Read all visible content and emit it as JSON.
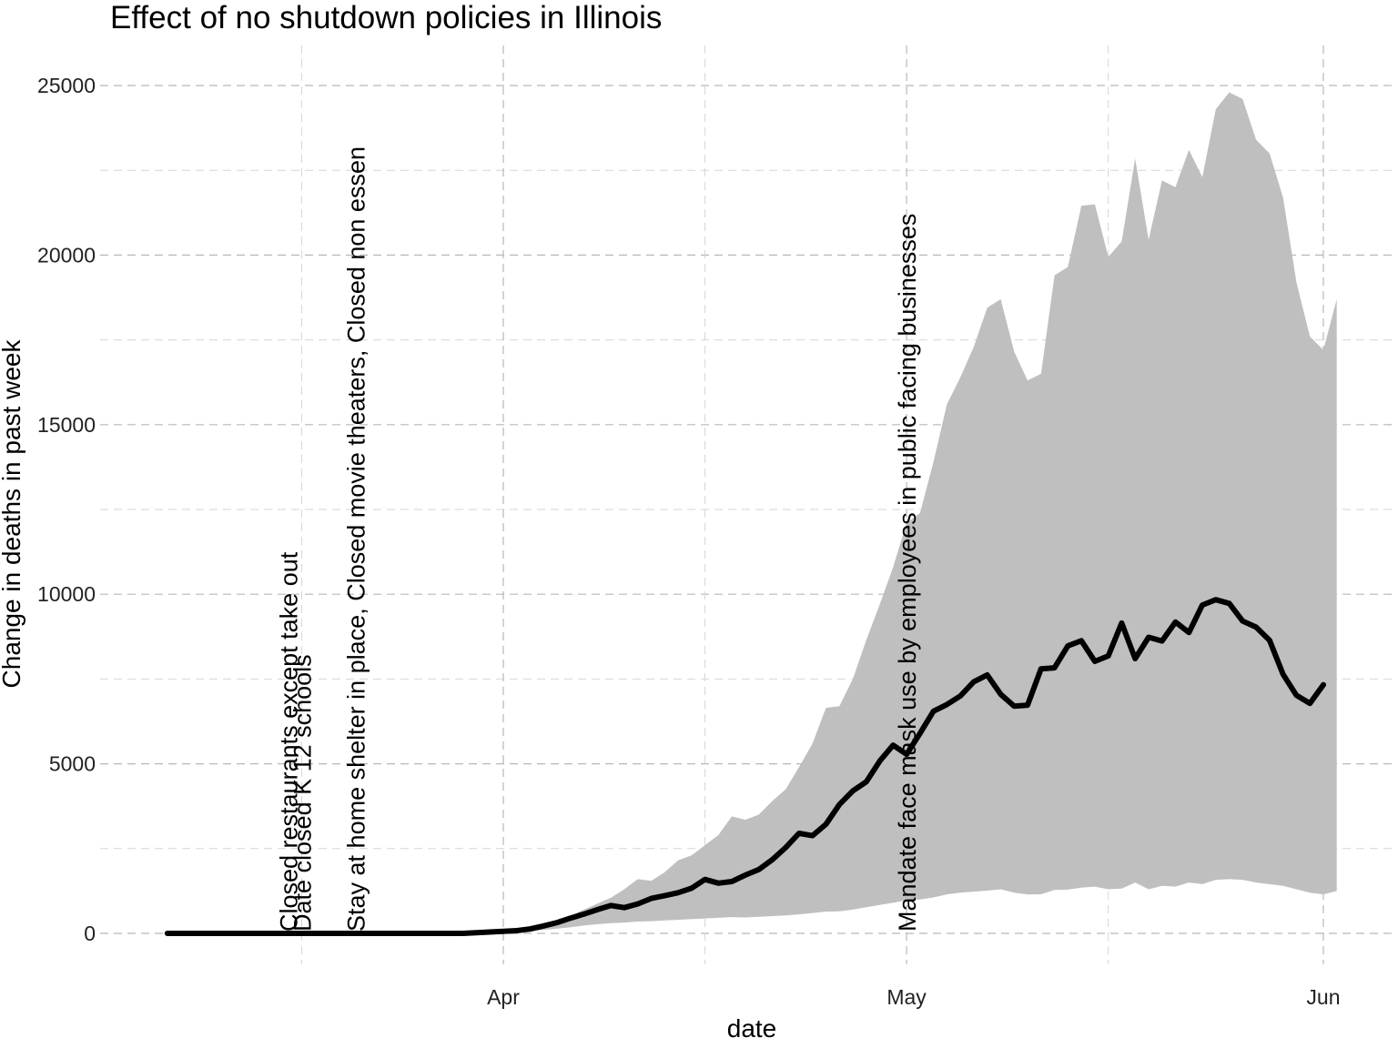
{
  "chart_data": {
    "type": "line",
    "title": "Effect of no shutdown policies in Illinois",
    "xlabel": "date",
    "ylabel": "Change in deaths in past week",
    "x_axis": "date",
    "xlim": [
      "2020-03-01",
      "2020-06-02"
    ],
    "ylim": [
      -1500,
      26000
    ],
    "grid": true,
    "legend": "none",
    "x_ticks": [
      {
        "date": "2020-04-01",
        "label": "Apr"
      },
      {
        "date": "2020-05-01",
        "label": "May"
      },
      {
        "date": "2020-06-01",
        "label": "Jun"
      }
    ],
    "x_minor_gridlines": [
      "2020-03-17",
      "2020-04-16",
      "2020-05-16"
    ],
    "y_ticks": [
      0,
      5000,
      10000,
      15000,
      20000,
      25000
    ],
    "y_minor_gridlines": [
      2500,
      7500,
      12500,
      17500,
      22500
    ],
    "colors": {
      "line": "#000000",
      "band": "#bfbfbf"
    },
    "annotations": [
      {
        "date": "2020-03-16",
        "text": "Closed restaurants except take out"
      },
      {
        "date": "2020-03-17",
        "text": "Date closed K 12 schools"
      },
      {
        "date": "2020-03-21",
        "text": "Stay at home  shelter in place, Closed movie theaters, Closed non essen"
      },
      {
        "date": "2020-05-01",
        "text": "Mandate face mask use by employees in public facing businesses"
      }
    ],
    "series": [
      {
        "type": "band",
        "points": [
          [
            "2020-03-07",
            0,
            0
          ],
          [
            "2020-03-28",
            0,
            0
          ],
          [
            "2020-03-31",
            20,
            80
          ],
          [
            "2020-04-01",
            40,
            110
          ],
          [
            "2020-04-02",
            55,
            160
          ],
          [
            "2020-04-03",
            70,
            220
          ],
          [
            "2020-04-04",
            100,
            300
          ],
          [
            "2020-04-05",
            140,
            400
          ],
          [
            "2020-04-06",
            180,
            520
          ],
          [
            "2020-04-07",
            230,
            700
          ],
          [
            "2020-04-08",
            270,
            880
          ],
          [
            "2020-04-09",
            300,
            1050
          ],
          [
            "2020-04-10",
            320,
            1300
          ],
          [
            "2020-04-11",
            350,
            1600
          ],
          [
            "2020-04-12",
            360,
            1550
          ],
          [
            "2020-04-13",
            380,
            1800
          ],
          [
            "2020-04-14",
            400,
            2150
          ],
          [
            "2020-04-15",
            420,
            2300
          ],
          [
            "2020-04-16",
            440,
            2600
          ],
          [
            "2020-04-17",
            460,
            2900
          ],
          [
            "2020-04-18",
            480,
            3450
          ],
          [
            "2020-04-19",
            470,
            3350
          ],
          [
            "2020-04-20",
            490,
            3500
          ],
          [
            "2020-04-21",
            510,
            3900
          ],
          [
            "2020-04-22",
            530,
            4250
          ],
          [
            "2020-04-23",
            560,
            4900
          ],
          [
            "2020-04-24",
            600,
            5600
          ],
          [
            "2020-04-25",
            640,
            6650
          ],
          [
            "2020-04-26",
            650,
            6700
          ],
          [
            "2020-04-27",
            700,
            7500
          ],
          [
            "2020-04-28",
            770,
            8650
          ],
          [
            "2020-04-29",
            840,
            9700
          ],
          [
            "2020-04-30",
            900,
            10800
          ],
          [
            "2020-05-01",
            980,
            12100
          ],
          [
            "2020-05-02",
            1000,
            12400
          ],
          [
            "2020-05-03",
            1060,
            13900
          ],
          [
            "2020-05-04",
            1150,
            15600
          ],
          [
            "2020-05-05",
            1200,
            16400
          ],
          [
            "2020-05-06",
            1230,
            17300
          ],
          [
            "2020-05-07",
            1260,
            18450
          ],
          [
            "2020-05-08",
            1300,
            18700
          ],
          [
            "2020-05-09",
            1200,
            17150
          ],
          [
            "2020-05-10",
            1150,
            16300
          ],
          [
            "2020-05-11",
            1150,
            16500
          ],
          [
            "2020-05-12",
            1280,
            19400
          ],
          [
            "2020-05-13",
            1290,
            19650
          ],
          [
            "2020-05-14",
            1350,
            21450
          ],
          [
            "2020-05-15",
            1380,
            21500
          ],
          [
            "2020-05-16",
            1300,
            19950
          ],
          [
            "2020-05-17",
            1320,
            20400
          ],
          [
            "2020-05-18",
            1500,
            22850
          ],
          [
            "2020-05-19",
            1300,
            20450
          ],
          [
            "2020-05-20",
            1400,
            22200
          ],
          [
            "2020-05-21",
            1380,
            22000
          ],
          [
            "2020-05-22",
            1500,
            23100
          ],
          [
            "2020-05-23",
            1450,
            22300
          ],
          [
            "2020-05-24",
            1580,
            24300
          ],
          [
            "2020-05-25",
            1600,
            24800
          ],
          [
            "2020-05-26",
            1580,
            24600
          ],
          [
            "2020-05-27",
            1500,
            23400
          ],
          [
            "2020-05-28",
            1450,
            23000
          ],
          [
            "2020-05-29",
            1400,
            21700
          ],
          [
            "2020-05-30",
            1300,
            19200
          ],
          [
            "2020-05-31",
            1200,
            17600
          ],
          [
            "2020-06-01",
            1150,
            17200
          ],
          [
            "2020-06-02",
            1250,
            18700
          ]
        ]
      },
      {
        "type": "line",
        "points": [
          [
            "2020-03-07",
            0
          ],
          [
            "2020-03-29",
            0
          ],
          [
            "2020-03-30",
            20
          ],
          [
            "2020-03-31",
            40
          ],
          [
            "2020-04-01",
            60
          ],
          [
            "2020-04-02",
            80
          ],
          [
            "2020-04-03",
            130
          ],
          [
            "2020-04-04",
            220
          ],
          [
            "2020-04-05",
            320
          ],
          [
            "2020-04-06",
            450
          ],
          [
            "2020-04-07",
            570
          ],
          [
            "2020-04-08",
            700
          ],
          [
            "2020-04-09",
            820
          ],
          [
            "2020-04-10",
            760
          ],
          [
            "2020-04-11",
            870
          ],
          [
            "2020-04-12",
            1030
          ],
          [
            "2020-04-13",
            1110
          ],
          [
            "2020-04-14",
            1200
          ],
          [
            "2020-04-15",
            1330
          ],
          [
            "2020-04-16",
            1590
          ],
          [
            "2020-04-17",
            1480
          ],
          [
            "2020-04-18",
            1530
          ],
          [
            "2020-04-19",
            1720
          ],
          [
            "2020-04-20",
            1880
          ],
          [
            "2020-04-21",
            2170
          ],
          [
            "2020-04-22",
            2530
          ],
          [
            "2020-04-23",
            2950
          ],
          [
            "2020-04-24",
            2880
          ],
          [
            "2020-04-25",
            3220
          ],
          [
            "2020-04-26",
            3800
          ],
          [
            "2020-04-27",
            4200
          ],
          [
            "2020-04-28",
            4470
          ],
          [
            "2020-04-29",
            5080
          ],
          [
            "2020-04-30",
            5550
          ],
          [
            "2020-05-01",
            5280
          ],
          [
            "2020-05-02",
            5900
          ],
          [
            "2020-05-03",
            6550
          ],
          [
            "2020-05-04",
            6750
          ],
          [
            "2020-05-05",
            7000
          ],
          [
            "2020-05-06",
            7420
          ],
          [
            "2020-05-07",
            7620
          ],
          [
            "2020-05-08",
            7050
          ],
          [
            "2020-05-09",
            6700
          ],
          [
            "2020-05-10",
            6730
          ],
          [
            "2020-05-11",
            7800
          ],
          [
            "2020-05-12",
            7830
          ],
          [
            "2020-05-13",
            8480
          ],
          [
            "2020-05-14",
            8630
          ],
          [
            "2020-05-15",
            8020
          ],
          [
            "2020-05-16",
            8180
          ],
          [
            "2020-05-17",
            9150
          ],
          [
            "2020-05-18",
            8100
          ],
          [
            "2020-05-19",
            8730
          ],
          [
            "2020-05-20",
            8620
          ],
          [
            "2020-05-21",
            9180
          ],
          [
            "2020-05-22",
            8870
          ],
          [
            "2020-05-23",
            9680
          ],
          [
            "2020-05-24",
            9840
          ],
          [
            "2020-05-25",
            9730
          ],
          [
            "2020-05-26",
            9210
          ],
          [
            "2020-05-27",
            9030
          ],
          [
            "2020-05-28",
            8640
          ],
          [
            "2020-05-29",
            7640
          ],
          [
            "2020-05-30",
            7020
          ],
          [
            "2020-05-31",
            6780
          ],
          [
            "2020-06-01",
            7330
          ]
        ]
      }
    ]
  }
}
